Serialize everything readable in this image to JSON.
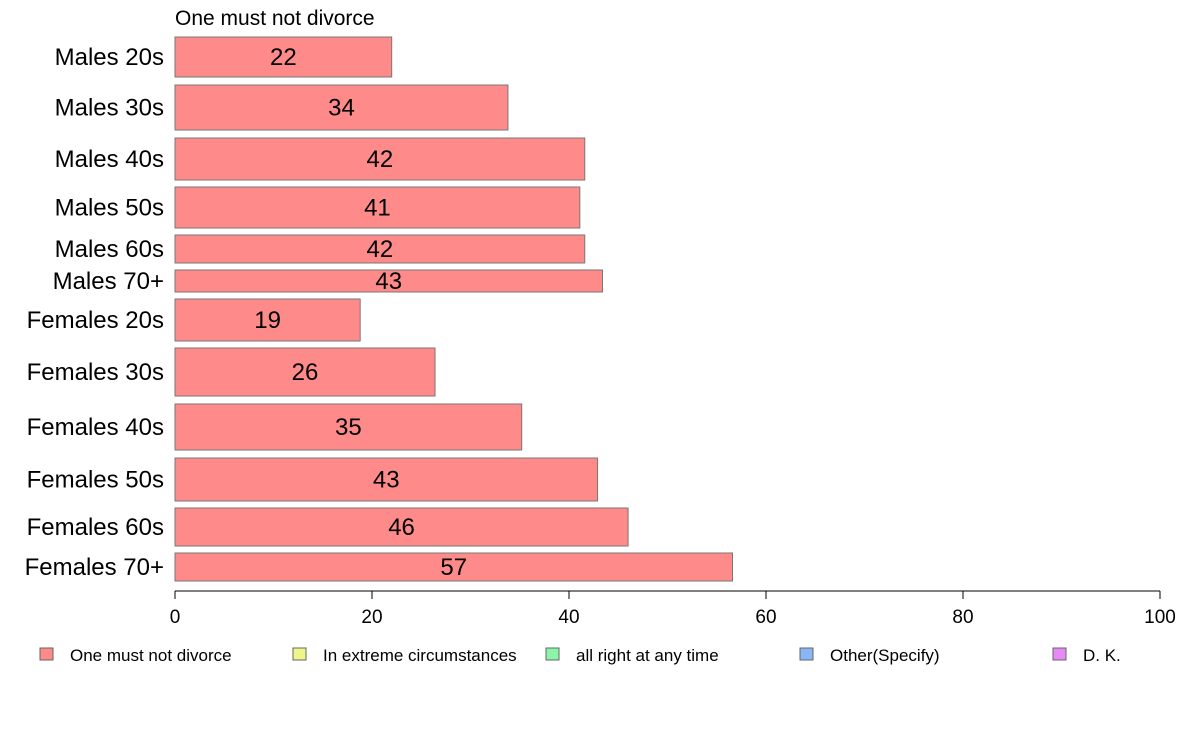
{
  "chart_data": {
    "type": "bar",
    "orientation": "horizontal",
    "title": "One must not divorce",
    "categories": [
      "Males 20s",
      "Males 30s",
      "Males 40s",
      "Males 50s",
      "Males 60s",
      "Males 70+",
      "Females 20s",
      "Females 30s",
      "Females 40s",
      "Females 50s",
      "Females 60s",
      "Females 70+"
    ],
    "series": [
      {
        "name": "One must not divorce",
        "color": "#ff8a8a",
        "values": [
          22,
          34,
          42,
          41,
          42,
          43,
          19,
          26,
          35,
          43,
          46,
          57
        ],
        "exact_values": [
          22.0,
          33.8,
          41.6,
          41.1,
          41.6,
          43.4,
          18.8,
          26.4,
          35.2,
          42.9,
          46.0,
          56.6
        ]
      }
    ],
    "xlim": [
      0,
      100
    ],
    "x_ticks": [
      0,
      20,
      40,
      60,
      80,
      100
    ],
    "grid": false,
    "legend": {
      "placement": "bottom",
      "items": [
        {
          "label": "One must not divorce",
          "color": "#ff8a8a"
        },
        {
          "label": "In extreme circumstances",
          "color": "#f0f58a"
        },
        {
          "label": "all right at any time",
          "color": "#8af5a8"
        },
        {
          "label": "Other(Specify)",
          "color": "#8ab6f5"
        },
        {
          "label": "D. K.",
          "color": "#e88af5"
        }
      ]
    }
  }
}
